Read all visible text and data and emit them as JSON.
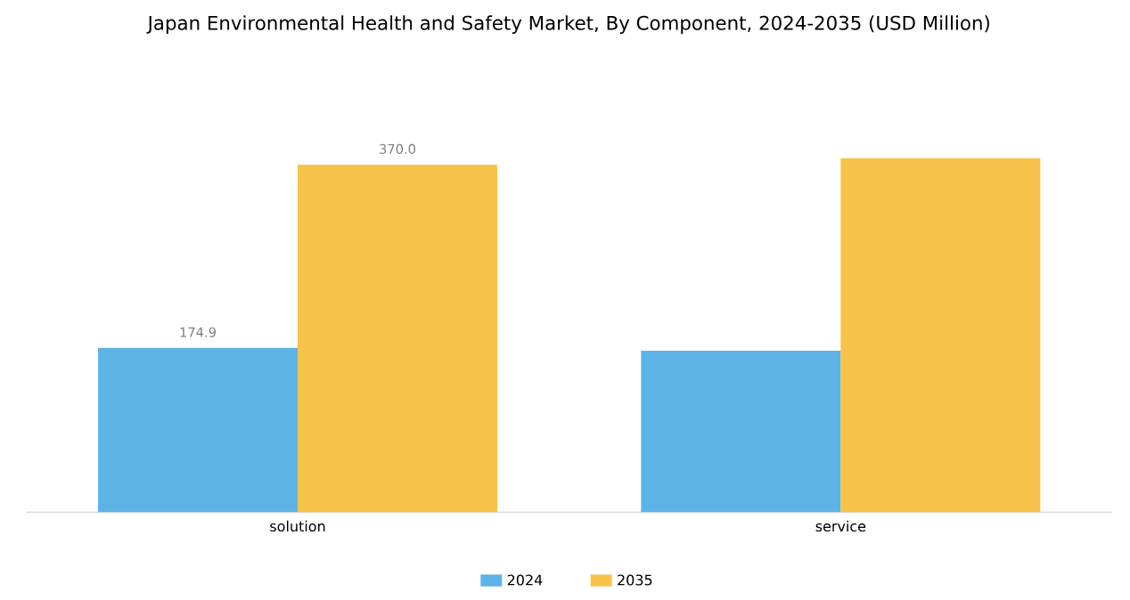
{
  "chart_data": {
    "type": "bar",
    "title": "Japan Environmental Health and Safety Market, By Component, 2024-2035 (USD Million)",
    "categories": [
      "solution",
      "service"
    ],
    "series": [
      {
        "name": "2024",
        "color": "#5db3e6",
        "values": [
          174.9,
          172
        ],
        "value_labels": [
          "174.9",
          null
        ]
      },
      {
        "name": "2035",
        "color": "#f8c34a",
        "values": [
          370.0,
          377
        ],
        "value_labels": [
          "370.0",
          null
        ]
      }
    ],
    "legend": "bottom"
  }
}
